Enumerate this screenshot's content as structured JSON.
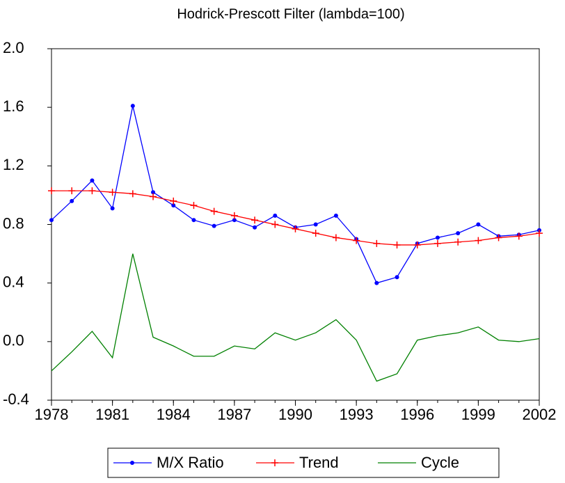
{
  "chart_data": {
    "type": "line",
    "title": "Hodrick-Prescott Filter (lambda=100)",
    "x": [
      1978,
      1979,
      1980,
      1981,
      1982,
      1983,
      1984,
      1985,
      1986,
      1987,
      1988,
      1989,
      1990,
      1991,
      1992,
      1993,
      1994,
      1995,
      1996,
      1997,
      1998,
      1999,
      2000,
      2001,
      2002
    ],
    "series": [
      {
        "name": "M/X Ratio",
        "color": "#0000ff",
        "marker": "dot",
        "values": [
          0.83,
          0.96,
          1.1,
          0.91,
          1.61,
          1.02,
          0.93,
          0.83,
          0.79,
          0.83,
          0.78,
          0.86,
          0.78,
          0.8,
          0.86,
          0.7,
          0.4,
          0.44,
          0.67,
          0.71,
          0.74,
          0.8,
          0.72,
          0.73,
          0.76
        ]
      },
      {
        "name": "Trend",
        "color": "#ff0000",
        "marker": "plus",
        "values": [
          1.03,
          1.03,
          1.03,
          1.02,
          1.01,
          0.99,
          0.96,
          0.93,
          0.89,
          0.86,
          0.83,
          0.8,
          0.77,
          0.74,
          0.71,
          0.69,
          0.67,
          0.66,
          0.66,
          0.67,
          0.68,
          0.69,
          0.71,
          0.72,
          0.74
        ]
      },
      {
        "name": "Cycle",
        "color": "#008000",
        "values": [
          -0.2,
          -0.07,
          0.07,
          -0.11,
          0.6,
          0.03,
          -0.03,
          -0.1,
          -0.1,
          -0.03,
          -0.05,
          0.06,
          0.01,
          0.06,
          0.15,
          0.01,
          -0.27,
          -0.22,
          0.01,
          0.04,
          0.06,
          0.1,
          0.01,
          0.0,
          0.02
        ]
      }
    ],
    "xlim": [
      1978,
      2002
    ],
    "xticks": [
      1978,
      1981,
      1984,
      1987,
      1990,
      1993,
      1996,
      1999,
      2002
    ],
    "ylim": [
      -0.4,
      2.0
    ],
    "yticks": [
      -0.4,
      {
        "value": 0,
        "label": "0.0"
      },
      0.4,
      0.8,
      1.2,
      1.6,
      {
        "value": 2,
        "label": "2.0"
      }
    ],
    "grid": false,
    "legend": "bottom"
  }
}
